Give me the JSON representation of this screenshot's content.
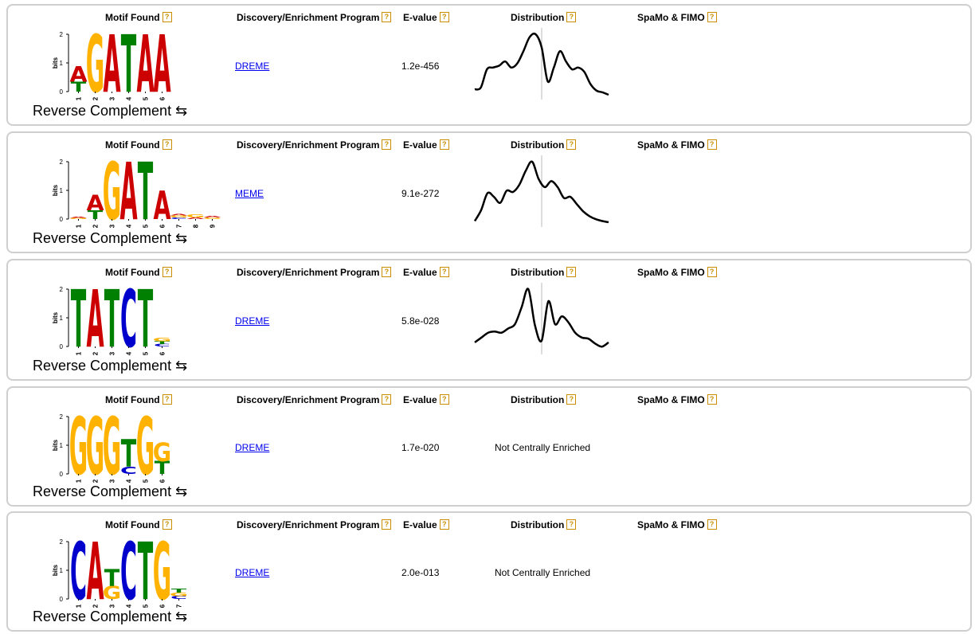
{
  "headers": {
    "motif": "Motif Found",
    "program": "Discovery/Enrichment Program",
    "evalue": "E-value",
    "distribution": "Distribution",
    "spamo": "SpaMo & FIMO",
    "help": "?"
  },
  "axis": {
    "ylabel": "bits",
    "ticks": [
      "0",
      "1",
      "2"
    ]
  },
  "revcomp_label": "Reverse Complement ⇆",
  "colors": {
    "A": "#cc0000",
    "C": "#0000cc",
    "G": "#ffb300",
    "T": "#008000",
    "link": "#0000ee",
    "help": "#c98f00"
  },
  "motifs": [
    {
      "program": "DREME",
      "evalue": "1.2e-456",
      "distribution": "curve",
      "positions": [
        "1",
        "2",
        "3",
        "4",
        "5",
        "6"
      ],
      "logo": [
        [
          [
            "T",
            0.35
          ],
          [
            "A",
            0.55
          ]
        ],
        [
          [
            "G",
            2.0
          ]
        ],
        [
          [
            "A",
            2.0
          ]
        ],
        [
          [
            "T",
            2.0
          ]
        ],
        [
          [
            "A",
            2.0
          ]
        ],
        [
          [
            "A",
            2.0
          ]
        ]
      ],
      "curve": [
        0.09,
        0.12,
        0.42,
        0.45,
        0.48,
        0.55,
        0.45,
        0.52,
        0.72,
        0.95,
        1.0,
        0.78,
        0.22,
        0.45,
        0.72,
        0.55,
        0.42,
        0.45,
        0.38,
        0.18,
        0.07,
        0.04,
        0.0
      ]
    },
    {
      "program": "MEME",
      "evalue": "9.1e-272",
      "distribution": "curve",
      "positions": [
        "1",
        "2",
        "3",
        "4",
        "5",
        "6",
        "7",
        "8",
        "9"
      ],
      "logo": [
        [
          [
            "G",
            0.04
          ],
          [
            "A",
            0.04
          ]
        ],
        [
          [
            "T",
            0.3
          ],
          [
            "A",
            0.55
          ]
        ],
        [
          [
            "G",
            2.0
          ]
        ],
        [
          [
            "A",
            2.0
          ]
        ],
        [
          [
            "T",
            2.0
          ]
        ],
        [
          [
            "A",
            1.0
          ]
        ],
        [
          [
            "C",
            0.05
          ],
          [
            "G",
            0.07
          ],
          [
            "A",
            0.05
          ]
        ],
        [
          [
            "A",
            0.06
          ],
          [
            "G",
            0.1
          ]
        ],
        [
          [
            "G",
            0.05
          ],
          [
            "A",
            0.06
          ]
        ]
      ],
      "curve": [
        0.02,
        0.2,
        0.48,
        0.42,
        0.32,
        0.52,
        0.5,
        0.62,
        0.85,
        1.0,
        0.72,
        0.58,
        0.68,
        0.58,
        0.4,
        0.42,
        0.3,
        0.18,
        0.1,
        0.05,
        0.02,
        0.0
      ]
    },
    {
      "program": "DREME",
      "evalue": "5.8e-028",
      "distribution": "curve",
      "positions": [
        "1",
        "2",
        "3",
        "4",
        "5",
        "6"
      ],
      "logo": [
        [
          [
            "T",
            2.0
          ]
        ],
        [
          [
            "A",
            2.0
          ]
        ],
        [
          [
            "T",
            2.0
          ]
        ],
        [
          [
            "C",
            2.0
          ]
        ],
        [
          [
            "T",
            2.0
          ]
        ],
        [
          [
            "C",
            0.08
          ],
          [
            "T",
            0.1
          ],
          [
            "G",
            0.12
          ]
        ]
      ],
      "curve": [
        0.12,
        0.2,
        0.28,
        0.3,
        0.28,
        0.35,
        0.42,
        0.7,
        1.0,
        0.4,
        0.15,
        0.8,
        0.42,
        0.55,
        0.45,
        0.28,
        0.2,
        0.18,
        0.1,
        0.05,
        0.12
      ]
    },
    {
      "program": "DREME",
      "evalue": "1.7e-020",
      "distribution": "Not Centrally Enriched",
      "positions": [
        "1",
        "2",
        "3",
        "4",
        "5",
        "6"
      ],
      "logo": [
        [
          [
            "G",
            2.0
          ]
        ],
        [
          [
            "G",
            2.0
          ]
        ],
        [
          [
            "G",
            2.0
          ]
        ],
        [
          [
            "C",
            0.25
          ],
          [
            "T",
            0.95
          ]
        ],
        [
          [
            "G",
            2.0
          ]
        ],
        [
          [
            "T",
            0.45
          ],
          [
            "G",
            0.65
          ]
        ]
      ]
    },
    {
      "program": "DREME",
      "evalue": "2.0e-013",
      "distribution": "Not Centrally Enriched",
      "positions": [
        "1",
        "2",
        "3",
        "4",
        "5",
        "6",
        "7"
      ],
      "logo": [
        [
          [
            "C",
            2.0
          ]
        ],
        [
          [
            "A",
            2.0
          ]
        ],
        [
          [
            "G",
            0.45
          ],
          [
            "T",
            0.6
          ]
        ],
        [
          [
            "C",
            2.0
          ]
        ],
        [
          [
            "T",
            2.0
          ]
        ],
        [
          [
            "G",
            2.0
          ]
        ],
        [
          [
            "C",
            0.1
          ],
          [
            "G",
            0.12
          ],
          [
            "T",
            0.15
          ]
        ]
      ]
    }
  ]
}
